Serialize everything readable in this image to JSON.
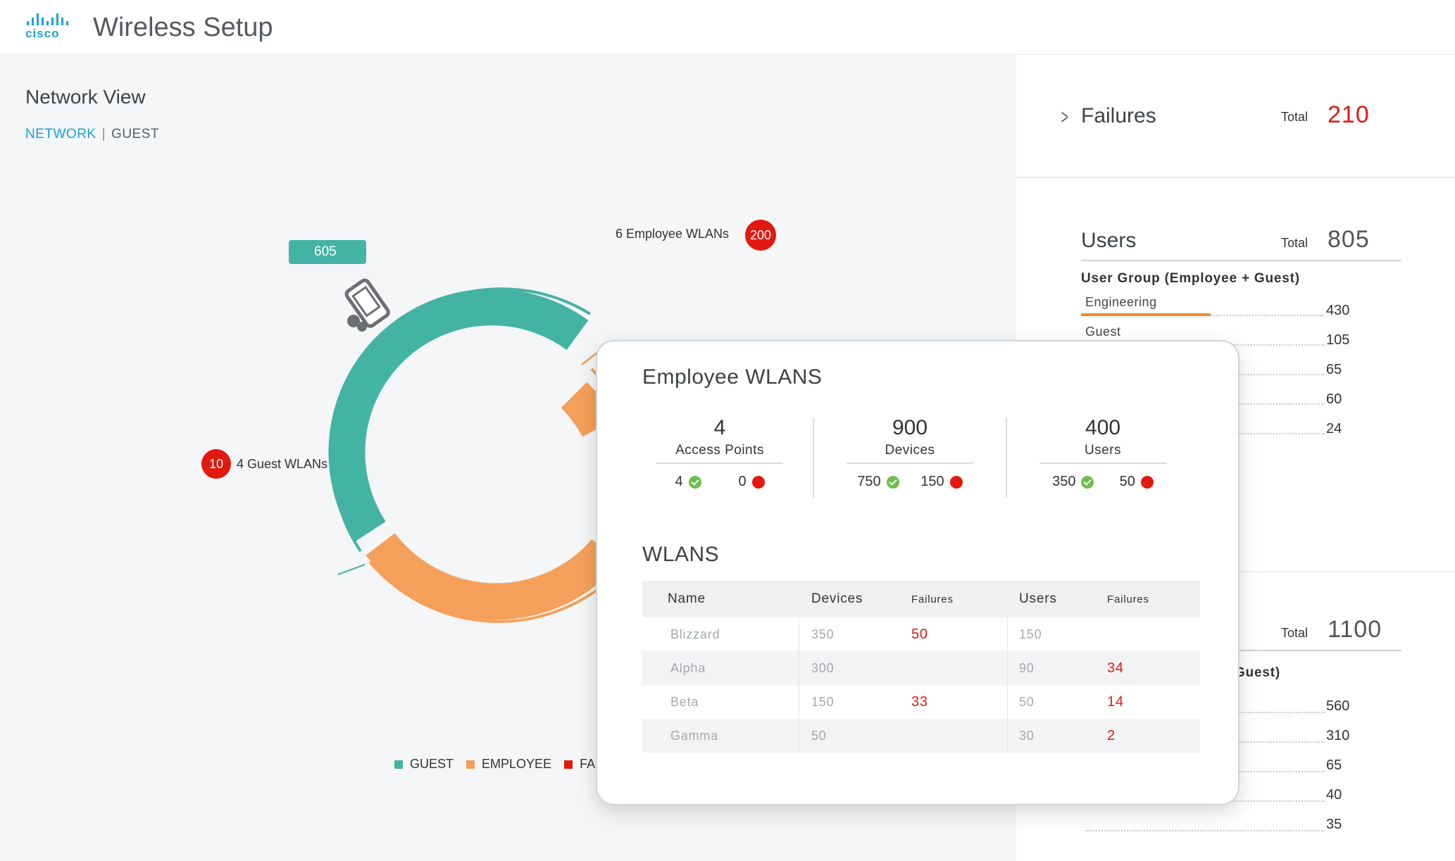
{
  "app": {
    "logo_text": "cisco",
    "title": "Wireless Setup"
  },
  "network_view": {
    "title": "Network View",
    "toggle_active": "NETWORK",
    "toggle_separator": "|",
    "toggle_inactive": "GUEST",
    "guest_count_label": "605",
    "employee_wlans_label": "6 Employee WLANs",
    "employee_wlans_failures": "200",
    "guest_wlans_label": "4 Guest WLANs",
    "guest_wlans_failures": "10",
    "legend": [
      {
        "label": "GUEST",
        "color": "#43b3a3"
      },
      {
        "label": "EMPLOYEE",
        "color": "#f5a05a"
      },
      {
        "label": "FAILURE",
        "color": "#e1190f"
      }
    ]
  },
  "failures_card": {
    "title": "Failures",
    "total_label": "Total",
    "total": "210"
  },
  "users_card": {
    "title": "Users",
    "total_label": "Total",
    "total": "805",
    "group_label": "User Group (Employee + Guest)",
    "rows": [
      {
        "name": "Engineering",
        "value": "430",
        "highlight_fraction": 0.53
      },
      {
        "name": "Guest",
        "value": "105"
      },
      {
        "name": "",
        "value": "65"
      },
      {
        "name": "",
        "value": "60"
      },
      {
        "name": "",
        "value": "24"
      }
    ]
  },
  "devices_card": {
    "total_label": "Total",
    "total": "1100",
    "group_label_partial": "Guest)",
    "values": [
      "560",
      "310",
      "65",
      "40",
      "35"
    ]
  },
  "popover": {
    "title": "Employee WLANS",
    "stats": [
      {
        "number": "4",
        "label": "Access Points",
        "ok": "4",
        "fail": "0"
      },
      {
        "number": "900",
        "label": "Devices",
        "ok": "750",
        "fail": "150"
      },
      {
        "number": "400",
        "label": "Users",
        "ok": "350",
        "fail": "50"
      }
    ],
    "wlans_title": "WLANS",
    "table_headers": [
      "Name",
      "Devices",
      "Failures",
      "Users",
      "Failures"
    ],
    "table_rows": [
      {
        "name": "Blizzard",
        "devices": "350",
        "device_failures": "50",
        "users": "150",
        "user_failures": ""
      },
      {
        "name": "Alpha",
        "devices": "300",
        "device_failures": "",
        "users": "90",
        "user_failures": "34"
      },
      {
        "name": "Beta",
        "devices": "150",
        "device_failures": "33",
        "users": "50",
        "user_failures": "14"
      },
      {
        "name": "Gamma",
        "devices": "50",
        "device_failures": "",
        "users": "30",
        "user_failures": "2"
      }
    ]
  }
}
